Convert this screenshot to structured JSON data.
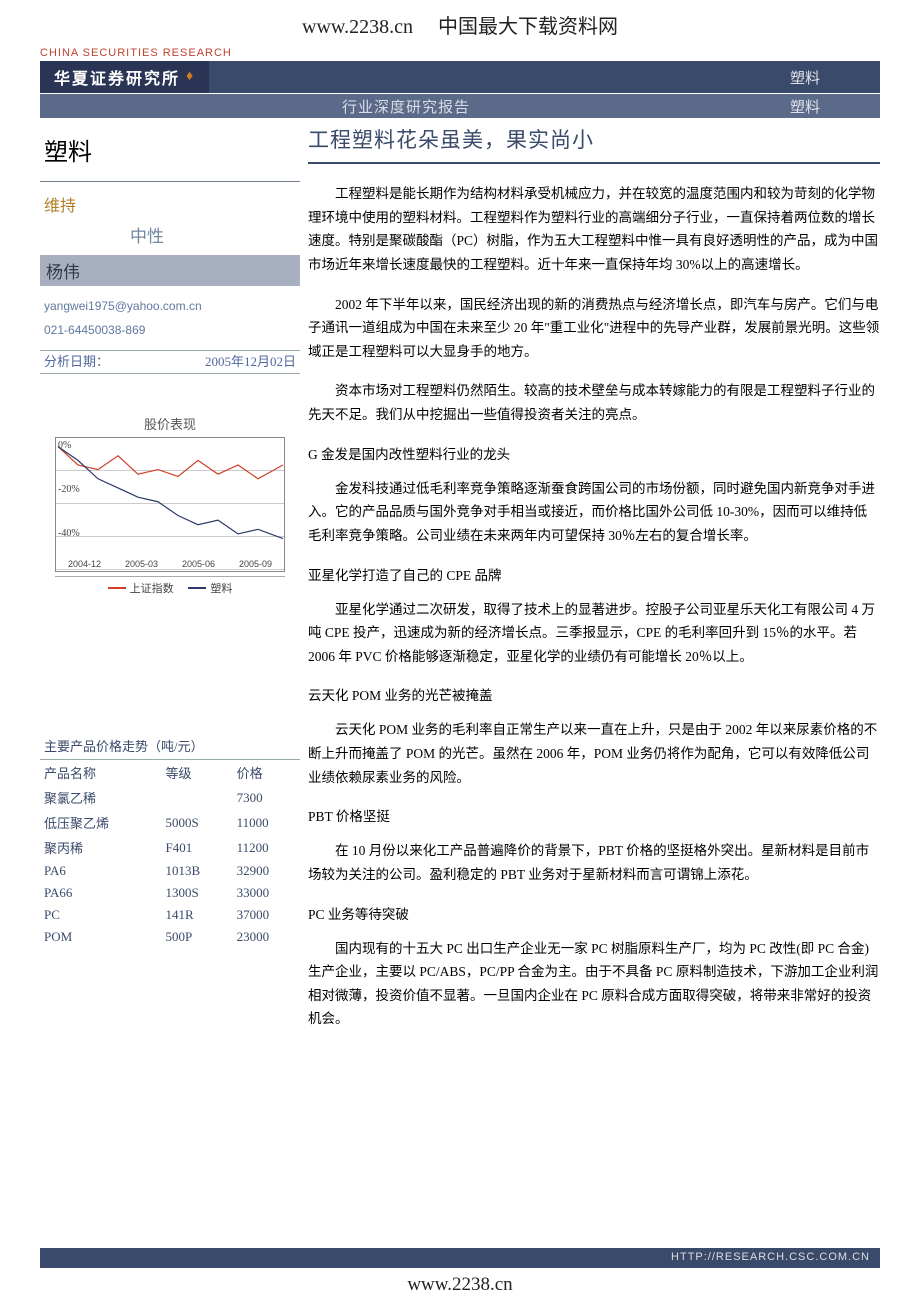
{
  "header": {
    "url": "www.2238.cn",
    "site_desc": "中国最大下载资料网"
  },
  "banner": {
    "eng": "CHINA SECURITIES RESEARCH",
    "logo": "华夏证券研究所",
    "tag_top": "塑料",
    "subbar_left": "行业深度研究报告",
    "subbar_right": "塑料"
  },
  "main_title": "工程塑料花朵虽美，果实尚小",
  "sidebar": {
    "category": "塑料",
    "rating1": "维持",
    "rating2": "中性",
    "analyst": "杨伟",
    "email": "yangwei1975@yahoo.com.cn",
    "phone": "021-64450038-869",
    "date_label": "分析日期：",
    "date_value": "2005年12月02日",
    "chart_title": "股价表现",
    "chart": {
      "type": "line",
      "yticks": [
        "0%",
        "-20%",
        "-40%"
      ],
      "ylim": [
        -45,
        2
      ],
      "xticks": [
        "2004-12",
        "2005-03",
        "2005-06",
        "2005-09"
      ],
      "series": [
        {
          "name": "上证指数",
          "color": "#d04028",
          "points": [
            [
              0,
              0
            ],
            [
              20,
              -8
            ],
            [
              40,
              -10
            ],
            [
              60,
              -4
            ],
            [
              80,
              -12
            ],
            [
              100,
              -10
            ],
            [
              120,
              -13
            ],
            [
              140,
              -6
            ],
            [
              160,
              -12
            ],
            [
              180,
              -8
            ],
            [
              200,
              -14
            ],
            [
              225,
              -8
            ]
          ]
        },
        {
          "name": "塑料",
          "color": "#2a3a6a",
          "points": [
            [
              0,
              0
            ],
            [
              20,
              -6
            ],
            [
              40,
              -14
            ],
            [
              60,
              -18
            ],
            [
              80,
              -22
            ],
            [
              100,
              -24
            ],
            [
              120,
              -30
            ],
            [
              140,
              -34
            ],
            [
              160,
              -32
            ],
            [
              180,
              -38
            ],
            [
              200,
              -36
            ],
            [
              225,
              -40
            ]
          ]
        }
      ],
      "legend": [
        "上证指数",
        "塑料"
      ],
      "bg": "#ffffff",
      "grid": "#cccccc"
    },
    "price_title": "主要产品价格走势（吨/元）",
    "price_table": {
      "columns": [
        "产品名称",
        "等级",
        "价格"
      ],
      "rows": [
        [
          "聚氯乙稀",
          "",
          "7300"
        ],
        [
          "低压聚乙烯",
          "5000S",
          "11000"
        ],
        [
          "聚丙稀",
          "F401",
          "11200"
        ],
        [
          "PA6",
          "1013B",
          "32900"
        ],
        [
          "PA66",
          "1300S",
          "33000"
        ],
        [
          "PC",
          "141R",
          "37000"
        ],
        [
          "POM",
          "500P",
          "23000"
        ]
      ]
    }
  },
  "body": {
    "p1": "工程塑料是能长期作为结构材料承受机械应力，并在较宽的温度范围内和较为苛刻的化学物理环境中使用的塑料材料。工程塑料作为塑料行业的高端细分子行业，一直保持着两位数的增长速度。特别是聚碳酸酯（PC）树脂，作为五大工程塑料中惟一具有良好透明性的产品，成为中国市场近年来增长速度最快的工程塑料。近十年来一直保持年均 30%以上的高速增长。",
    "p2": "2002 年下半年以来，国民经济出现的新的消费热点与经济增长点，即汽车与房产。它们与电子通讯一道组成为中国在未来至少 20 年\"重工业化\"进程中的先导产业群，发展前景光明。这些领域正是工程塑料可以大显身手的地方。",
    "p3": "资本市场对工程塑料仍然陌生。较高的技术壁垒与成本转嫁能力的有限是工程塑料子行业的先天不足。我们从中挖掘出一些值得投资者关注的亮点。",
    "h1": "G 金发是国内改性塑料行业的龙头",
    "p4": "金发科技通过低毛利率竞争策略逐渐蚕食跨国公司的市场份额，同时避免国内新竞争对手进入。它的产品品质与国外竞争对手相当或接近，而价格比国外公司低 10-30%，因而可以维持低毛利率竞争策略。公司业绩在未来两年内可望保持 30％左右的复合增长率。",
    "h2": "亚星化学打造了自己的 CPE 品牌",
    "p5": "亚星化学通过二次研发，取得了技术上的显著进步。控股子公司亚星乐天化工有限公司 4 万吨 CPE 投产，迅速成为新的经济增长点。三季报显示，CPE 的毛利率回升到 15％的水平。若 2006 年 PVC 价格能够逐渐稳定，亚星化学的业绩仍有可能增长 20％以上。",
    "h3": "云天化 POM 业务的光芒被掩盖",
    "p6": "云天化 POM 业务的毛利率自正常生产以来一直在上升，只是由于 2002 年以来尿素价格的不断上升而掩盖了 POM 的光芒。虽然在 2006 年，POM 业务仍将作为配角，它可以有效降低公司业绩依赖尿素业务的风险。",
    "h4": "PBT 价格坚挺",
    "p7": "在 10 月份以来化工产品普遍降价的背景下，PBT 价格的坚挺格外突出。星新材料是目前市场较为关注的公司。盈利稳定的 PBT 业务对于星新材料而言可谓锦上添花。",
    "h5": "PC 业务等待突破",
    "p8": "国内现有的十五大 PC 出口生产企业无一家 PC 树脂原料生产厂，均为 PC 改性(即 PC 合金)生产企业，主要以 PC/ABS，PC/PP 合金为主。由于不具备 PC 原料制造技术，下游加工企业利润相对微薄，投资价值不显著。一旦国内企业在 PC 原料合成方面取得突破，将带来非常好的投资机会。"
  },
  "footer": {
    "url": "HTTP://RESEARCH.CSC.COM.CN",
    "bottom": "www.2238.cn"
  }
}
